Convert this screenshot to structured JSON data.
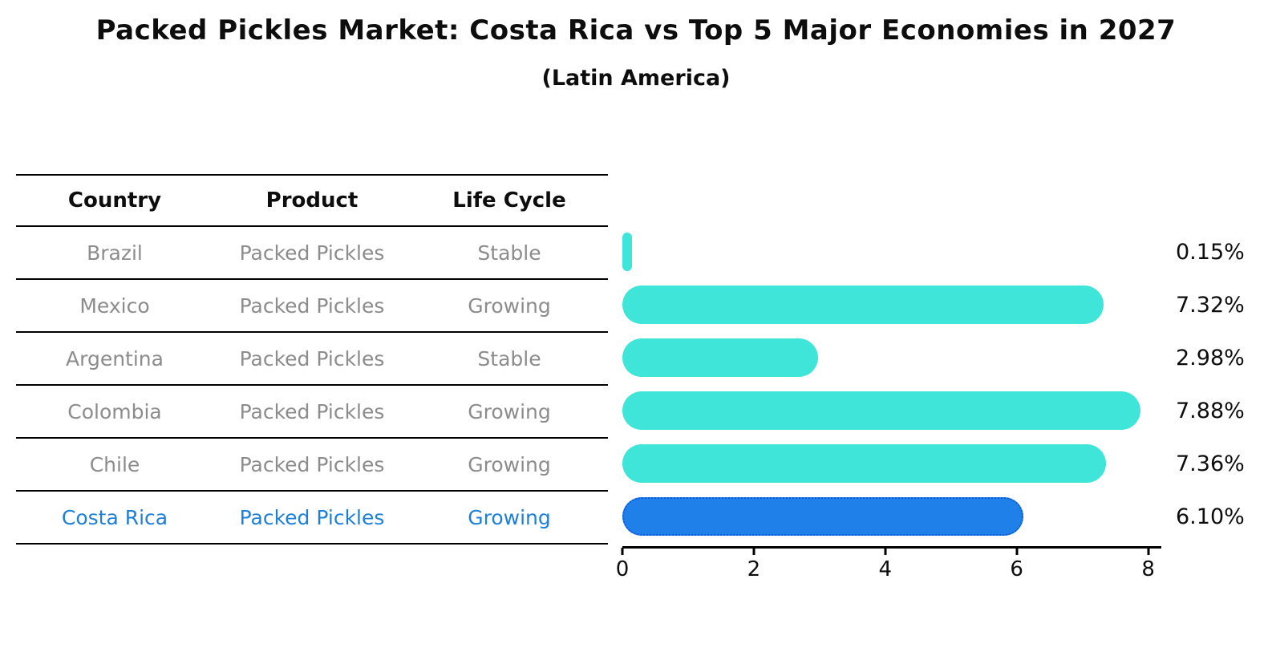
{
  "title": "Packed Pickles Market: Costa Rica vs Top 5 Major Economies in 2027",
  "subtitle": "(Latin America)",
  "table": {
    "headers": [
      "Country",
      "Product",
      "Life Cycle"
    ],
    "rows": [
      {
        "country": "Brazil",
        "product": "Packed Pickles",
        "life_cycle": "Stable",
        "highlight": false
      },
      {
        "country": "Mexico",
        "product": "Packed Pickles",
        "life_cycle": "Growing",
        "highlight": false
      },
      {
        "country": "Argentina",
        "product": "Packed Pickles",
        "life_cycle": "Stable",
        "highlight": false
      },
      {
        "country": "Colombia",
        "product": "Packed Pickles",
        "life_cycle": "Growing",
        "highlight": false
      },
      {
        "country": "Chile",
        "product": "Packed Pickles",
        "life_cycle": "Growing",
        "highlight": false
      },
      {
        "country": "Costa Rica",
        "product": "Packed Pickles",
        "life_cycle": "Growing",
        "highlight": true
      }
    ]
  },
  "chart_data": {
    "type": "bar",
    "orientation": "horizontal",
    "title": "Packed Pickles Market: Costa Rica vs Top 5 Major Economies in 2027 (Latin America)",
    "categories": [
      "Brazil",
      "Mexico",
      "Argentina",
      "Colombia",
      "Chile",
      "Costa Rica"
    ],
    "values": [
      0.15,
      7.32,
      2.98,
      7.88,
      7.36,
      6.1
    ],
    "value_labels": [
      "0.15%",
      "7.32%",
      "2.98%",
      "7.88%",
      "7.36%",
      "6.10%"
    ],
    "xticks": [
      "0",
      "2",
      "4",
      "6",
      "8"
    ],
    "xtick_values": [
      0,
      2,
      4,
      6,
      8
    ],
    "xlim": [
      0,
      8.2
    ],
    "grid": false,
    "legend": "none",
    "highlight_index": 5,
    "bar_color": "#3FE5D8",
    "highlight_bar_color": "#1E80E8",
    "highlight_border_color": "#0C5BD6"
  },
  "colors": {
    "text_muted": "#8C8C8C",
    "highlight_text": "#1E7FD9",
    "axis": "#000000"
  }
}
